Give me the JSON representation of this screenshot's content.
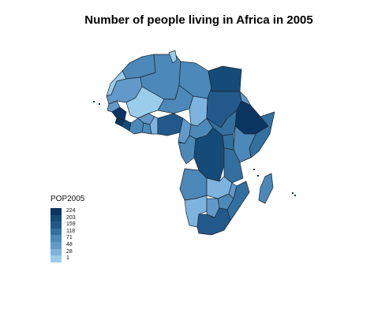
{
  "title": "Number of people living in Africa in 2005",
  "legend": {
    "title": "POP2005",
    "items": [
      {
        "label": "224",
        "color": "#0b3561"
      },
      {
        "label": "203",
        "color": "#154b78"
      },
      {
        "label": "159",
        "color": "#22598a"
      },
      {
        "label": "118",
        "color": "#33709f"
      },
      {
        "label": "71",
        "color": "#4c88b8"
      },
      {
        "label": "48",
        "color": "#6399c8"
      },
      {
        "label": "28",
        "color": "#7db3de"
      },
      {
        "label": "1",
        "color": "#9acde9"
      }
    ]
  },
  "colors": {
    "outline": "#1a2530",
    "background": "#ffffff"
  }
}
